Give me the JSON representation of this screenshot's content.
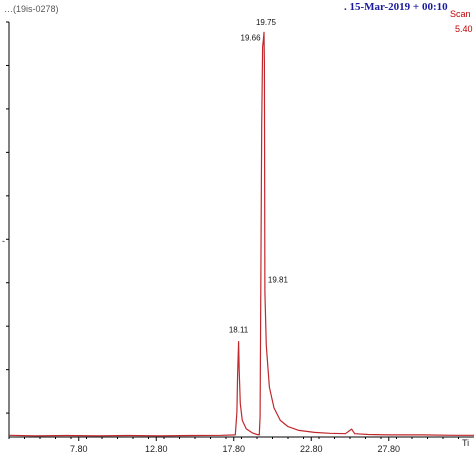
{
  "header": {
    "left_text": "…(19is-0278)",
    "date_text": ".  15-Mar-2019 + 00:10",
    "scan_text": "Scan",
    "scan_value": "5.40"
  },
  "chart_data": {
    "type": "line",
    "title": "",
    "xlabel": "Ti",
    "ylabel": "",
    "xlim": [
      3.3,
      33.3
    ],
    "ylim": [
      0,
      100
    ],
    "x_ticks": [
      7.8,
      12.8,
      17.8,
      22.8,
      27.8
    ],
    "x_tick_labels": [
      "7.80",
      "12.80",
      "17.80",
      "22.80",
      "27.80"
    ],
    "y_left_mark": "-",
    "peak_labels": [
      {
        "x": 18.11,
        "y": 24.5,
        "text": "18.11"
      },
      {
        "x": 19.66,
        "y": 96.0,
        "text": "19.66"
      },
      {
        "x": 19.75,
        "y": 98.5,
        "text": "19.75"
      },
      {
        "x": 19.81,
        "y": 36.5,
        "text": "19.81"
      }
    ],
    "series": [
      {
        "color": "#c0282d",
        "points": [
          [
            3.3,
            0.4
          ],
          [
            5.0,
            0.3
          ],
          [
            7.0,
            0.35
          ],
          [
            9.0,
            0.3
          ],
          [
            11.0,
            0.35
          ],
          [
            13.0,
            0.3
          ],
          [
            15.0,
            0.35
          ],
          [
            17.0,
            0.4
          ],
          [
            17.9,
            0.5
          ],
          [
            18.0,
            6.0
          ],
          [
            18.05,
            15.0
          ],
          [
            18.11,
            23.0
          ],
          [
            18.15,
            16.0
          ],
          [
            18.22,
            8.0
          ],
          [
            18.35,
            4.0
          ],
          [
            18.6,
            2.0
          ],
          [
            19.0,
            1.0
          ],
          [
            19.3,
            0.6
          ],
          [
            19.45,
            0.5
          ],
          [
            19.5,
            5.0
          ],
          [
            19.55,
            40.0
          ],
          [
            19.6,
            75.0
          ],
          [
            19.66,
            94.0
          ],
          [
            19.72,
            96.0
          ],
          [
            19.75,
            97.5
          ],
          [
            19.78,
            90.0
          ],
          [
            19.81,
            35.0
          ],
          [
            19.9,
            22.0
          ],
          [
            20.1,
            12.0
          ],
          [
            20.4,
            7.0
          ],
          [
            20.8,
            4.0
          ],
          [
            21.3,
            2.5
          ],
          [
            22.0,
            1.6
          ],
          [
            23.0,
            1.1
          ],
          [
            24.0,
            0.9
          ],
          [
            25.0,
            0.8
          ],
          [
            25.4,
            1.9
          ],
          [
            25.6,
            0.8
          ],
          [
            26.5,
            0.6
          ],
          [
            28.0,
            0.5
          ],
          [
            30.0,
            0.5
          ],
          [
            32.0,
            0.4
          ],
          [
            33.3,
            0.4
          ]
        ]
      }
    ]
  }
}
